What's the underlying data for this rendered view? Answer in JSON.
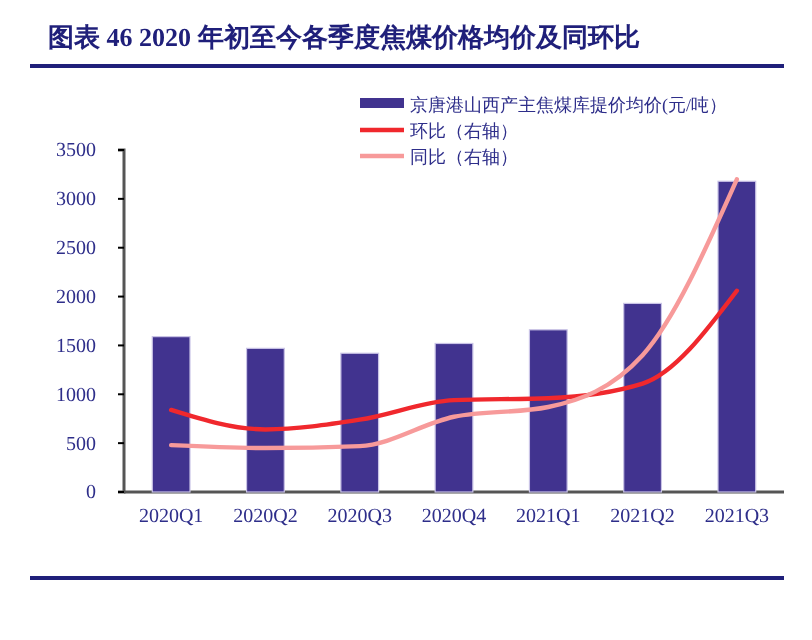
{
  "chart_data": {
    "type": "bar",
    "title": "图表 46 2020 年初至今各季度焦煤价格均价及同环比",
    "categories": [
      "2020Q1",
      "2020Q2",
      "2020Q3",
      "2020Q4",
      "2021Q1",
      "2021Q2",
      "2021Q3"
    ],
    "series": [
      {
        "name": "京唐港山西产主焦煤库提价均价(元/吨）",
        "color": "#41338f",
        "values": [
          1590,
          1470,
          1420,
          1520,
          1660,
          1930,
          3180
        ]
      },
      {
        "type": "line",
        "name": "环比（右轴）",
        "color": "#f0282d",
        "values": [
          840,
          640,
          740,
          940,
          960,
          1110,
          2060
        ]
      },
      {
        "type": "line",
        "name": "同比（右轴）",
        "color": "#f79a9a",
        "values": [
          480,
          450,
          470,
          770,
          870,
          1400,
          3200
        ]
      }
    ],
    "ylim": [
      0,
      3500
    ],
    "yticks": [
      0,
      500,
      1000,
      1500,
      2000,
      2500,
      3000,
      3500
    ],
    "grid": false,
    "legend": "top right"
  }
}
